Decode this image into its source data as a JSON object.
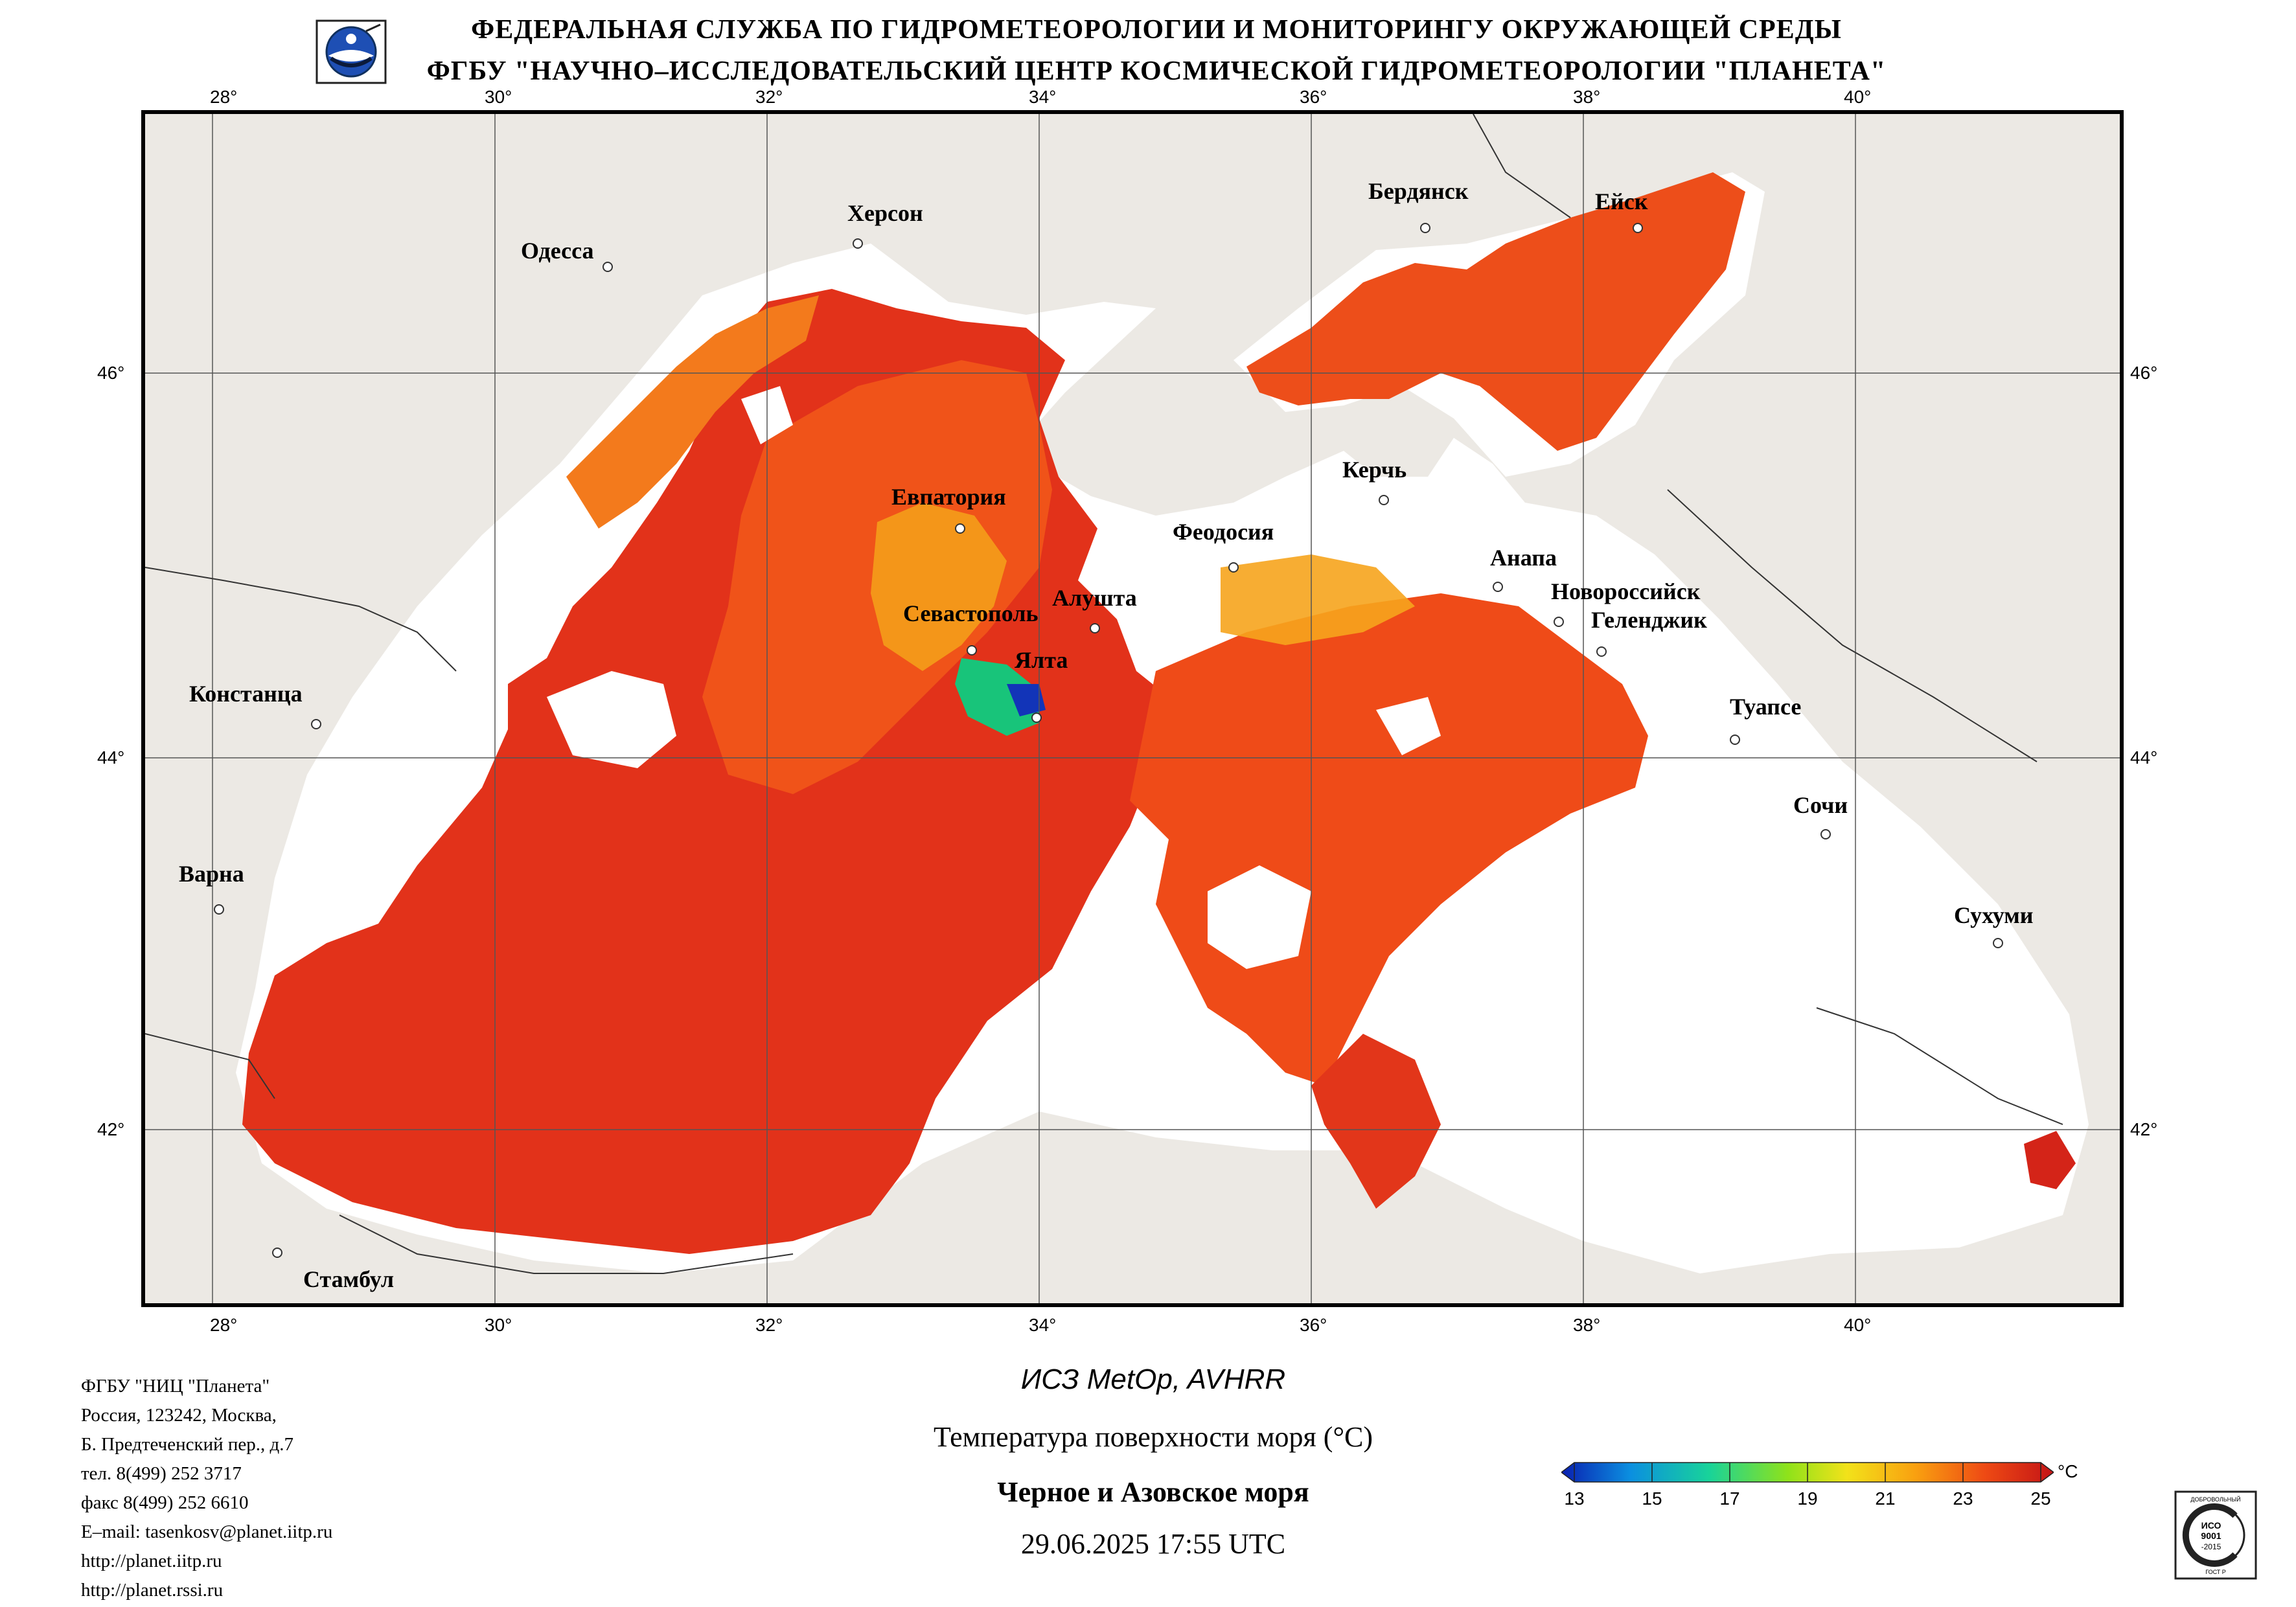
{
  "header": {
    "line1": "ФЕДЕРАЛЬНАЯ СЛУЖБА ПО ГИДРОМЕТЕОРОЛОГИИ И МОНИТОРИНГУ ОКРУЖАЮЩЕЙ СРЕДЫ",
    "line2": "ФГБУ \"НАУЧНО–ИССЛЕДОВАТЕЛЬСКИЙ ЦЕНТР КОСМИЧЕСКОЙ ГИДРОМЕТЕОРОЛОГИИ \"ПЛАНЕТА\""
  },
  "map": {
    "lon_labels": [
      "28°",
      "30°",
      "32°",
      "34°",
      "36°",
      "38°",
      "40°"
    ],
    "lat_labels": [
      "46°",
      "44°",
      "42°"
    ],
    "cities": {
      "odessa": "Одесса",
      "kherson": "Херсон",
      "berdyansk": "Бердянск",
      "yeysk": "Ейск",
      "evpatoria": "Евпатория",
      "kerch": "Керчь",
      "feodosia": "Феодосия",
      "anapa": "Анапа",
      "sevastopol": "Севастополь",
      "alushta": "Алушта",
      "novorossiysk": "Новороссийск",
      "gelendzhik": "Геленджик",
      "yalta": "Ялта",
      "constanta": "Констанца",
      "tuapse": "Туапсе",
      "sochi": "Сочи",
      "varna": "Варна",
      "sukhumi": "Сухуми",
      "istanbul": "Стамбул"
    }
  },
  "footer": {
    "lines": [
      "ФГБУ \"НИЦ \"Планета\"",
      "Россия, 123242, Москва,",
      "Б. Предтеченский пер., д.7",
      "тел. 8(499) 252 3717",
      "факс 8(499) 252 6610",
      "E–mail: tasenkosv@planet.iitp.ru",
      "http://planet.iitp.ru",
      "http://planet.rssi.ru"
    ]
  },
  "caption": {
    "satellite": "ИСЗ MetOp, AVHRR",
    "parameter": "Температура поверхности моря (°C)",
    "region": "Черное и Азовское моря",
    "datetime": "29.06.2025 17:55 UTC"
  },
  "colorbar": {
    "ticks": [
      "13",
      "15",
      "17",
      "19",
      "21",
      "23",
      "25"
    ],
    "unit": "°C",
    "colors": [
      "#0a1fb0",
      "#0b8fe0",
      "#18d39a",
      "#8fe21a",
      "#f2e21a",
      "#f9a010",
      "#ee4a14",
      "#c41416"
    ]
  },
  "badge": {
    "top": "ДОБРОВОЛЬНЫЙ",
    "middle1": "ИСО",
    "middle2": "9001",
    "middle3": "-2015",
    "bottom": "ГОСТ Р"
  }
}
